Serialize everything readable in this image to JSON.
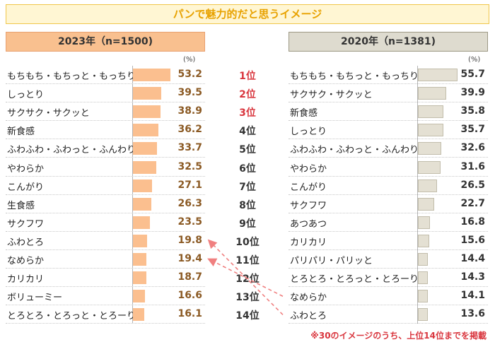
{
  "title": "パンで魅力的だと思うイメージ",
  "unit": "(%)",
  "footnote": "※30のイメージのうち、上位14位までを掲載",
  "colors": {
    "bar_2023": "#fbbf8f",
    "bar_2020": "#e4e0d3",
    "rank_top": "#d9363e",
    "arrow": "#f08080"
  },
  "chart_data": [
    {
      "type": "bar",
      "orientation": "horizontal",
      "title": "2023年（n=1500)",
      "categories": [
        "もちもち・もちっと・もっちり",
        "しっとり",
        "サクサク・サクッと",
        "新食感",
        "ふわふわ・ふわっと・ふんわり",
        "やわらか",
        "こんがり",
        "生食感",
        "サクフワ",
        "ふわとろ",
        "なめらか",
        "カリカリ",
        "ボリューミー",
        "とろとろ・とろっと・とろーり"
      ],
      "values": [
        53.2,
        39.5,
        38.9,
        36.2,
        33.7,
        32.5,
        27.1,
        26.3,
        23.5,
        19.8,
        19.4,
        18.7,
        16.6,
        16.1
      ],
      "xlim": [
        0,
        100
      ]
    },
    {
      "type": "bar",
      "orientation": "horizontal",
      "title": "2020年（n=1381)",
      "categories": [
        "もちもち・もちっと・もっちり",
        "サクサク・サクッと",
        "新食感",
        "しっとり",
        "ふわふわ・ふわっと・ふんわり",
        "やわらか",
        "こんがり",
        "サクフワ",
        "あつあつ",
        "カリカリ",
        "パリパリ・パリッと",
        "とろとろ・とろっと・とろーり",
        "なめらか",
        "ふわとろ"
      ],
      "values": [
        55.7,
        39.9,
        35.8,
        35.7,
        32.6,
        31.6,
        26.5,
        22.7,
        16.8,
        15.6,
        14.4,
        14.3,
        14.1,
        13.6
      ],
      "xlim": [
        0,
        100
      ]
    }
  ],
  "ranks": [
    "1位",
    "2位",
    "3位",
    "4位",
    "5位",
    "6位",
    "7位",
    "8位",
    "9位",
    "10位",
    "11位",
    "12位",
    "13位",
    "14位"
  ],
  "movements": [
    {
      "label": "ふわとろ",
      "from_rank": 14,
      "to_rank": 10
    },
    {
      "label": "なめらか",
      "from_rank": 13,
      "to_rank": 11
    }
  ]
}
